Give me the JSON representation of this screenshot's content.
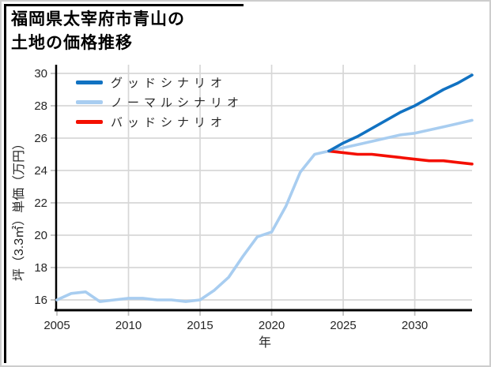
{
  "title": {
    "line1": "福岡県太宰府市青山の",
    "line2": "土地の価格推移"
  },
  "chart_data": {
    "type": "line",
    "title": "福岡県太宰府市青山の土地の価格推移",
    "xlabel": "年",
    "ylabel": "坪（3.3㎡）単価（万円）",
    "x_ticks": [
      2005,
      2010,
      2015,
      2020,
      2025,
      2030
    ],
    "y_ticks": [
      16,
      18,
      20,
      22,
      24,
      26,
      28,
      30
    ],
    "xlim": [
      2005,
      2034
    ],
    "ylim": [
      15.4,
      30.6
    ],
    "grid": true,
    "legend_position": "upper-left-inside",
    "colors": {
      "grid": "#d7d7d7",
      "tick": "#bdbdbd",
      "axis": "#000000",
      "text": "#262626"
    },
    "series": [
      {
        "name": "グッドシナリオ",
        "color": "#1172c2",
        "x": [
          2024,
          2025,
          2026,
          2027,
          2028,
          2029,
          2030,
          2031,
          2032,
          2033,
          2034
        ],
        "values": [
          25.2,
          25.7,
          26.1,
          26.6,
          27.1,
          27.6,
          28.0,
          28.5,
          29.0,
          29.4,
          29.9
        ]
      },
      {
        "name": "ノーマルシナリオ",
        "color": "#a8cdf0",
        "x": [
          2005,
          2006,
          2007,
          2008,
          2009,
          2010,
          2011,
          2012,
          2013,
          2014,
          2015,
          2016,
          2017,
          2018,
          2019,
          2020,
          2021,
          2022,
          2023,
          2024,
          2025,
          2026,
          2027,
          2028,
          2029,
          2030,
          2031,
          2032,
          2033,
          2034
        ],
        "values": [
          16.0,
          16.4,
          16.5,
          15.9,
          16.0,
          16.1,
          16.1,
          16.0,
          16.0,
          15.9,
          16.0,
          16.6,
          17.4,
          18.7,
          19.9,
          20.2,
          21.8,
          23.9,
          25.0,
          25.2,
          25.4,
          25.6,
          25.8,
          26.0,
          26.2,
          26.3,
          26.5,
          26.7,
          26.9,
          27.1
        ]
      },
      {
        "name": "バッドシナリオ",
        "color": "#f40f00",
        "x": [
          2024,
          2025,
          2026,
          2027,
          2028,
          2029,
          2030,
          2031,
          2032,
          2033,
          2034
        ],
        "values": [
          25.2,
          25.1,
          25.0,
          25.0,
          24.9,
          24.8,
          24.7,
          24.6,
          24.6,
          24.5,
          24.4
        ]
      }
    ]
  }
}
